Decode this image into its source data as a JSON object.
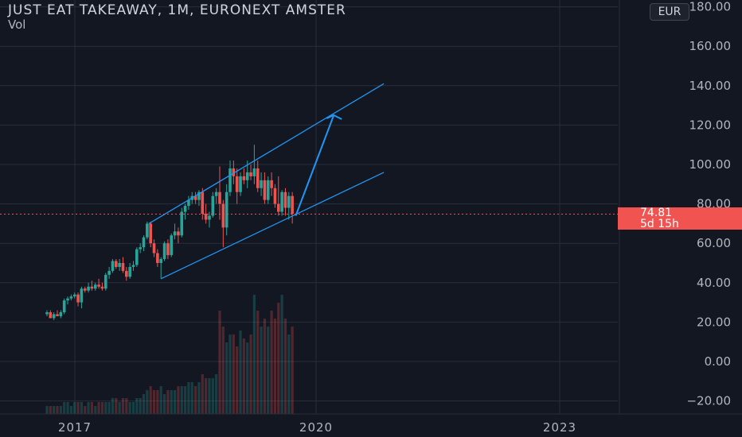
{
  "header": {
    "title": "JUST EAT TAKEAWAY, 1M, EURONEXT AMSTER",
    "volume_label": "Vol",
    "currency_button": "EUR"
  },
  "price_tag": {
    "price": "74.81",
    "countdown": "5d 15h"
  },
  "colors": {
    "background": "#131722",
    "up": "#26a69a",
    "down": "#ef5350",
    "drawing": "#2196f3",
    "grid": "#2a2e39",
    "price_tag": "#f05350"
  },
  "chart_data": {
    "type": "candlestick",
    "title": "JUST EAT TAKEAWAY, 1M, EURONEXT AMSTER",
    "y_axis_ticks": [
      "180.00",
      "160.00",
      "140.00",
      "120.00",
      "100.00",
      "80.00",
      "60.00",
      "40.00",
      "20.00",
      "0.00",
      "−20.00"
    ],
    "x_axis_ticks": [
      "2017",
      "2020",
      "2023"
    ],
    "ylim": [
      -23,
      190
    ],
    "current_price": 74.81,
    "candles": [
      {
        "o": 24,
        "h": 26,
        "l": 23,
        "c": 25
      },
      {
        "o": 25,
        "h": 26,
        "l": 22,
        "c": 22
      },
      {
        "o": 22,
        "h": 25,
        "l": 21,
        "c": 24
      },
      {
        "o": 24,
        "h": 26,
        "l": 23,
        "c": 23
      },
      {
        "o": 23,
        "h": 26,
        "l": 22,
        "c": 25
      },
      {
        "o": 25,
        "h": 32,
        "l": 24,
        "c": 31
      },
      {
        "o": 31,
        "h": 33,
        "l": 29,
        "c": 32
      },
      {
        "o": 32,
        "h": 34,
        "l": 31,
        "c": 33
      },
      {
        "o": 33,
        "h": 35,
        "l": 32,
        "c": 34
      },
      {
        "o": 34,
        "h": 35,
        "l": 28,
        "c": 30
      },
      {
        "o": 30,
        "h": 38,
        "l": 27,
        "c": 37
      },
      {
        "o": 37,
        "h": 38,
        "l": 35,
        "c": 36
      },
      {
        "o": 36,
        "h": 40,
        "l": 35,
        "c": 38
      },
      {
        "o": 38,
        "h": 41,
        "l": 36,
        "c": 37
      },
      {
        "o": 37,
        "h": 40,
        "l": 36,
        "c": 39
      },
      {
        "o": 39,
        "h": 42,
        "l": 37,
        "c": 38
      },
      {
        "o": 38,
        "h": 40,
        "l": 36,
        "c": 37
      },
      {
        "o": 37,
        "h": 45,
        "l": 36,
        "c": 44
      },
      {
        "o": 44,
        "h": 48,
        "l": 42,
        "c": 46
      },
      {
        "o": 46,
        "h": 52,
        "l": 45,
        "c": 51
      },
      {
        "o": 51,
        "h": 52,
        "l": 47,
        "c": 48
      },
      {
        "o": 48,
        "h": 52,
        "l": 46,
        "c": 50
      },
      {
        "o": 50,
        "h": 53,
        "l": 45,
        "c": 46
      },
      {
        "o": 46,
        "h": 48,
        "l": 41,
        "c": 43
      },
      {
        "o": 43,
        "h": 50,
        "l": 42,
        "c": 48
      },
      {
        "o": 48,
        "h": 51,
        "l": 46,
        "c": 49
      },
      {
        "o": 49,
        "h": 58,
        "l": 48,
        "c": 57
      },
      {
        "o": 57,
        "h": 60,
        "l": 55,
        "c": 58
      },
      {
        "o": 58,
        "h": 64,
        "l": 56,
        "c": 63
      },
      {
        "o": 63,
        "h": 71,
        "l": 62,
        "c": 70
      },
      {
        "o": 70,
        "h": 71,
        "l": 58,
        "c": 60
      },
      {
        "o": 60,
        "h": 62,
        "l": 53,
        "c": 55
      },
      {
        "o": 55,
        "h": 57,
        "l": 48,
        "c": 50
      },
      {
        "o": 50,
        "h": 53,
        "l": 42,
        "c": 52
      },
      {
        "o": 52,
        "h": 61,
        "l": 51,
        "c": 60
      },
      {
        "o": 60,
        "h": 62,
        "l": 52,
        "c": 54
      },
      {
        "o": 54,
        "h": 65,
        "l": 53,
        "c": 64
      },
      {
        "o": 64,
        "h": 70,
        "l": 62,
        "c": 66
      },
      {
        "o": 66,
        "h": 68,
        "l": 60,
        "c": 64
      },
      {
        "o": 64,
        "h": 78,
        "l": 63,
        "c": 76
      },
      {
        "o": 76,
        "h": 80,
        "l": 72,
        "c": 79
      },
      {
        "o": 79,
        "h": 84,
        "l": 77,
        "c": 82
      },
      {
        "o": 82,
        "h": 86,
        "l": 80,
        "c": 84
      },
      {
        "o": 84,
        "h": 86,
        "l": 80,
        "c": 82
      },
      {
        "o": 82,
        "h": 87,
        "l": 79,
        "c": 86
      },
      {
        "o": 86,
        "h": 88,
        "l": 72,
        "c": 75
      },
      {
        "o": 75,
        "h": 80,
        "l": 70,
        "c": 72
      },
      {
        "o": 72,
        "h": 76,
        "l": 68,
        "c": 74
      },
      {
        "o": 74,
        "h": 86,
        "l": 73,
        "c": 84
      },
      {
        "o": 84,
        "h": 88,
        "l": 80,
        "c": 86
      },
      {
        "o": 86,
        "h": 99,
        "l": 72,
        "c": 80
      },
      {
        "o": 80,
        "h": 82,
        "l": 58,
        "c": 68
      },
      {
        "o": 68,
        "h": 90,
        "l": 64,
        "c": 86
      },
      {
        "o": 86,
        "h": 102,
        "l": 84,
        "c": 98
      },
      {
        "o": 98,
        "h": 102,
        "l": 90,
        "c": 94
      },
      {
        "o": 94,
        "h": 98,
        "l": 80,
        "c": 86
      },
      {
        "o": 86,
        "h": 96,
        "l": 84,
        "c": 94
      },
      {
        "o": 94,
        "h": 98,
        "l": 90,
        "c": 92
      },
      {
        "o": 92,
        "h": 102,
        "l": 88,
        "c": 96
      },
      {
        "o": 96,
        "h": 100,
        "l": 92,
        "c": 94
      },
      {
        "o": 94,
        "h": 110,
        "l": 90,
        "c": 98
      },
      {
        "o": 98,
        "h": 102,
        "l": 86,
        "c": 88
      },
      {
        "o": 88,
        "h": 96,
        "l": 84,
        "c": 92
      },
      {
        "o": 92,
        "h": 96,
        "l": 80,
        "c": 82
      },
      {
        "o": 82,
        "h": 94,
        "l": 80,
        "c": 92
      },
      {
        "o": 92,
        "h": 96,
        "l": 84,
        "c": 88
      },
      {
        "o": 88,
        "h": 90,
        "l": 78,
        "c": 80
      },
      {
        "o": 80,
        "h": 94,
        "l": 74,
        "c": 76
      },
      {
        "o": 76,
        "h": 87,
        "l": 74,
        "c": 86
      },
      {
        "o": 86,
        "h": 88,
        "l": 74,
        "c": 78
      },
      {
        "o": 78,
        "h": 86,
        "l": 72,
        "c": 84
      },
      {
        "o": 84,
        "h": 86,
        "l": 70,
        "c": 75
      }
    ],
    "volume_bars": [
      2,
      2,
      2,
      2,
      2,
      3,
      3,
      2,
      3,
      3,
      3,
      2,
      3,
      3,
      2,
      3,
      3,
      3,
      3,
      4,
      4,
      3,
      4,
      4,
      3,
      3,
      4,
      4,
      5,
      6,
      7,
      6,
      6,
      7,
      5,
      6,
      6,
      6,
      7,
      7,
      7,
      8,
      8,
      7,
      8,
      10,
      9,
      9,
      9,
      10,
      26,
      22,
      18,
      20,
      20,
      17,
      21,
      19,
      18,
      20,
      30,
      26,
      22,
      24,
      22,
      26,
      24,
      28,
      30,
      24,
      20,
      22
    ],
    "drawings": {
      "channel_upper": [
        {
          "i": 29.5,
          "p": 70
        },
        {
          "i": 97.5,
          "p": 141
        }
      ],
      "channel_lower": [
        {
          "i": 33,
          "p": 42
        },
        {
          "i": 97.5,
          "p": 96
        }
      ],
      "channel_parallel": [
        {
          "i": 33,
          "p": 44
        },
        {
          "i": 43,
          "p": 60
        }
      ],
      "projection_arrow": [
        {
          "i": 72,
          "p": 74
        },
        {
          "i": 83,
          "p": 125
        }
      ]
    }
  }
}
